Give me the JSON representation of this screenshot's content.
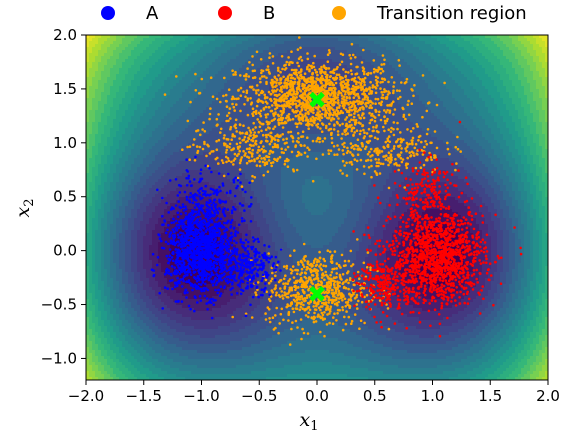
{
  "chart_data": {
    "type": "scatter",
    "title": "",
    "xlabel": "x",
    "xlabel_sub": "1",
    "ylabel": "x",
    "ylabel_sub": "2",
    "xlim": [
      -2.0,
      2.0
    ],
    "ylim": [
      -1.2,
      2.0
    ],
    "x_ticks": [
      -2.0,
      -1.5,
      -1.0,
      -0.5,
      0.0,
      0.5,
      1.0,
      1.5,
      2.0
    ],
    "x_tick_labels": [
      "−2.0",
      "−1.5",
      "−1.0",
      "−0.5",
      "0.0",
      "0.5",
      "1.0",
      "1.5",
      "2.0"
    ],
    "y_ticks": [
      -1.0,
      -0.5,
      0.0,
      0.5,
      1.0,
      1.5,
      2.0
    ],
    "y_tick_labels": [
      "−1.0",
      "−0.5",
      "0.0",
      "0.5",
      "1.0",
      "1.5",
      "2.0"
    ],
    "grid": false,
    "legend_placement": "top, outside, horizontal",
    "background": "filled contour of a potential energy surface (viridis colormap): minima near (-1, 0) and (1, 0), saddle regions near (0, 1.4) and (0, -0.4)",
    "series": [
      {
        "name": "A",
        "color": "#0000ff",
        "clusters": [
          {
            "center": [
              -1.0,
              0.0
            ],
            "spread": [
              0.15,
              0.2
            ],
            "weight": 0.75
          },
          {
            "center": [
              -0.6,
              -0.15
            ],
            "spread": [
              0.12,
              0.12
            ],
            "weight": 0.15
          },
          {
            "center": [
              -0.95,
              0.45
            ],
            "spread": [
              0.18,
              0.15
            ],
            "weight": 0.1
          }
        ]
      },
      {
        "name": "B",
        "color": "#ff0000",
        "clusters": [
          {
            "center": [
              1.05,
              -0.05
            ],
            "spread": [
              0.2,
              0.22
            ],
            "weight": 0.75
          },
          {
            "center": [
              0.6,
              -0.3
            ],
            "spread": [
              0.12,
              0.15
            ],
            "weight": 0.15
          },
          {
            "center": [
              0.95,
              0.55
            ],
            "spread": [
              0.15,
              0.15
            ],
            "weight": 0.1
          }
        ]
      },
      {
        "name": "Transition region",
        "color": "#ffa500",
        "clusters": [
          {
            "center": [
              0.0,
              1.42
            ],
            "spread": [
              0.35,
              0.17
            ],
            "weight": 0.55
          },
          {
            "center": [
              0.0,
              -0.36
            ],
            "spread": [
              0.22,
              0.17
            ],
            "weight": 0.25
          },
          {
            "center": [
              -0.6,
              0.95
            ],
            "spread": [
              0.25,
              0.12
            ],
            "weight": 0.1
          },
          {
            "center": [
              0.6,
              0.95
            ],
            "spread": [
              0.25,
              0.12
            ],
            "weight": 0.1
          }
        ]
      }
    ],
    "markers": [
      {
        "x": 0.0,
        "y": 1.4,
        "shape": "X",
        "color": "#00ff00"
      },
      {
        "x": 0.0,
        "y": -0.4,
        "shape": "X",
        "color": "#00ff00"
      }
    ]
  }
}
